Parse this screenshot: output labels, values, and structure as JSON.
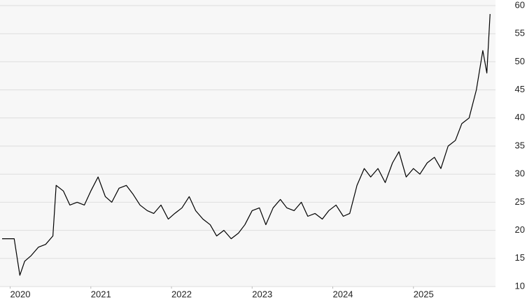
{
  "chart_data": {
    "type": "line",
    "x": [
      2019.9,
      2020.05,
      2020.12,
      2020.18,
      2020.26,
      2020.35,
      2020.44,
      2020.53,
      2020.57,
      2020.66,
      2020.74,
      2020.83,
      2020.92,
      2021.0,
      2021.09,
      2021.18,
      2021.26,
      2021.35,
      2021.44,
      2021.52,
      2021.61,
      2021.7,
      2021.78,
      2021.87,
      2021.96,
      2022.04,
      2022.13,
      2022.22,
      2022.3,
      2022.39,
      2022.48,
      2022.56,
      2022.65,
      2022.74,
      2022.83,
      2022.91,
      2023.0,
      2023.09,
      2023.17,
      2023.26,
      2023.35,
      2023.43,
      2023.52,
      2023.61,
      2023.69,
      2023.78,
      2023.87,
      2023.95,
      2024.04,
      2024.13,
      2024.21,
      2024.3,
      2024.39,
      2024.47,
      2024.56,
      2024.65,
      2024.74,
      2024.82,
      2024.91,
      2025.0,
      2025.08,
      2025.17,
      2025.26,
      2025.34,
      2025.43,
      2025.52,
      2025.6,
      2025.69,
      2025.78,
      2025.86,
      2025.91,
      2025.95
    ],
    "series": [
      {
        "color": "#000000",
        "values": [
          18.5,
          18.5,
          12,
          14.5,
          15.5,
          17,
          17.5,
          19,
          28,
          27,
          24.5,
          25,
          24.5,
          27,
          29.5,
          26,
          25,
          27.5,
          28,
          26.5,
          24.5,
          23.5,
          23,
          24.5,
          22,
          23,
          24,
          26,
          23.5,
          22,
          21,
          19,
          20,
          18.5,
          19.5,
          21,
          23.5,
          24,
          21,
          24,
          25.5,
          24,
          23.5,
          25,
          22.5,
          23,
          22,
          23.5,
          24.5,
          22.5,
          23,
          28,
          31,
          29.5,
          31,
          28.5,
          32,
          34,
          29.5,
          31,
          30,
          32,
          33,
          31,
          35,
          36,
          39,
          40,
          45,
          52,
          48,
          58.5
        ]
      }
    ],
    "xlim": [
      2019.9,
      2026
    ],
    "xticks": [
      2020,
      2021,
      2022,
      2023,
      2024,
      2025
    ],
    "ylim": [
      10,
      60
    ],
    "yticks": [
      10,
      15,
      20,
      25,
      30,
      35,
      40,
      45,
      50,
      55,
      60
    ],
    "grid": true
  }
}
